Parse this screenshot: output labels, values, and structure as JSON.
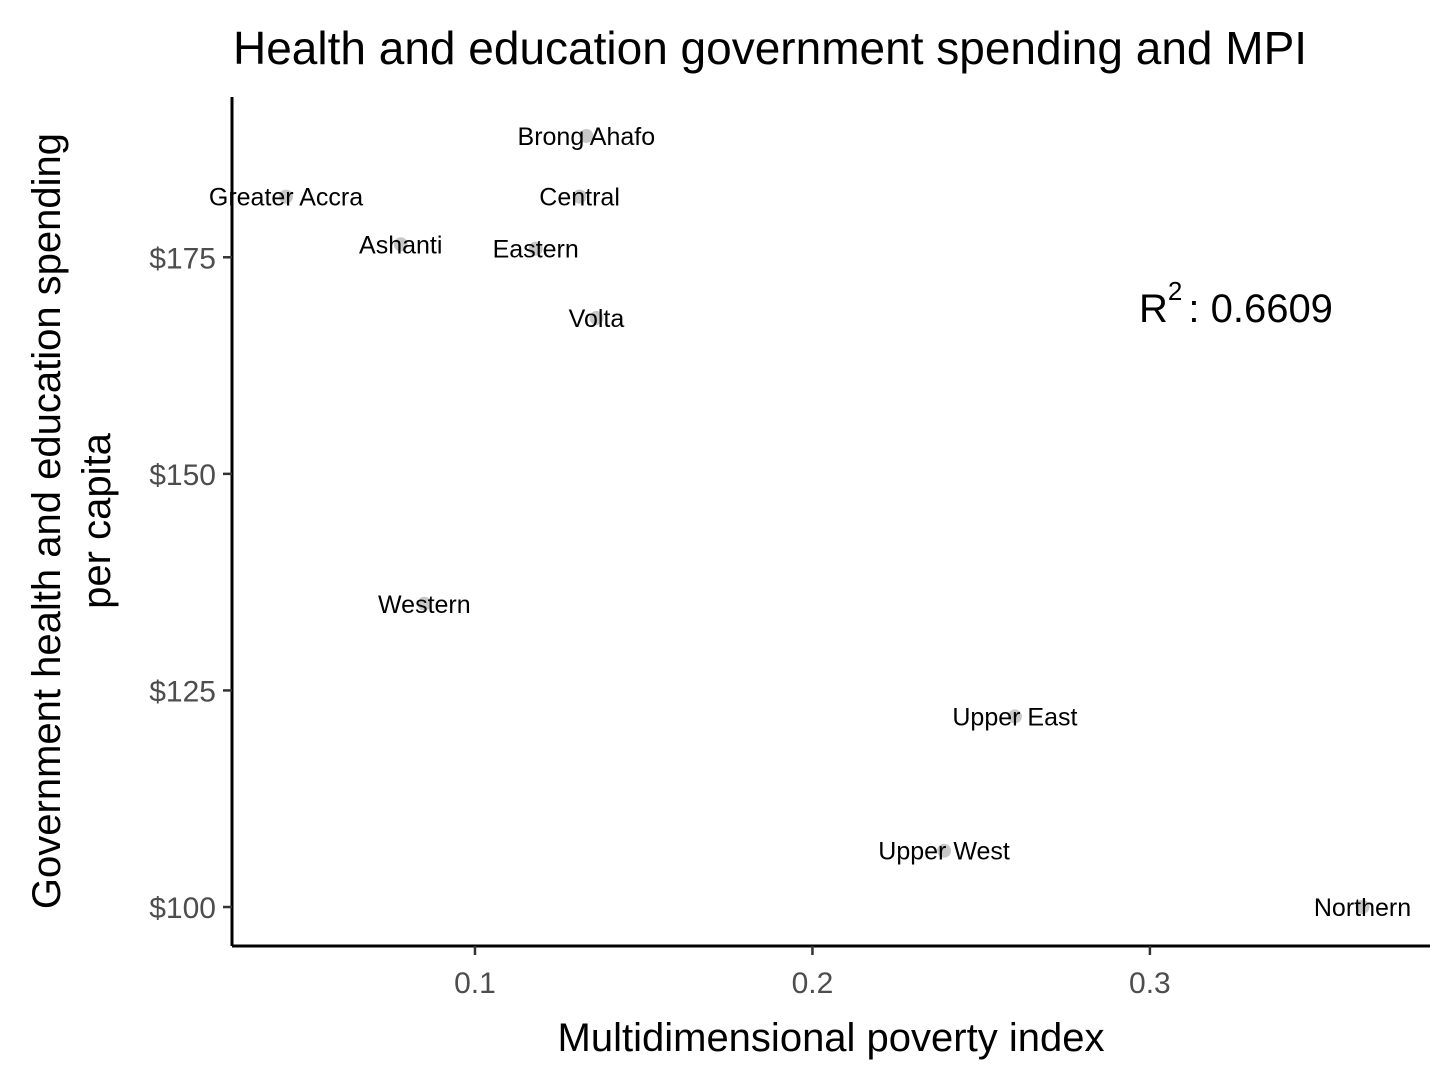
{
  "chart_data": {
    "type": "scatter",
    "title": "Health and education government spending and MPI",
    "xlabel": "Multidimensional poverty index",
    "ylabel_lines": [
      "Government health and education spending",
      "per capita"
    ],
    "xlim": [
      0.028,
      0.383
    ],
    "ylim": [
      95.5,
      193.5
    ],
    "x_ticks": [
      {
        "value": 0.1,
        "label": "0.1"
      },
      {
        "value": 0.2,
        "label": "0.2"
      },
      {
        "value": 0.3,
        "label": "0.3"
      }
    ],
    "y_ticks": [
      {
        "value": 100,
        "label": "$100"
      },
      {
        "value": 125,
        "label": "$125"
      },
      {
        "value": 150,
        "label": "$150"
      },
      {
        "value": 175,
        "label": "$175"
      }
    ],
    "point_color": "#c8c8c8",
    "points": [
      {
        "label": "Greater Accra",
        "x": 0.044,
        "y": 182
      },
      {
        "label": "Ashanti",
        "x": 0.078,
        "y": 176.5
      },
      {
        "label": "Brong Ahafo",
        "x": 0.133,
        "y": 189
      },
      {
        "label": "Central",
        "x": 0.131,
        "y": 182
      },
      {
        "label": "Eastern",
        "x": 0.118,
        "y": 176
      },
      {
        "label": "Volta",
        "x": 0.136,
        "y": 168
      },
      {
        "label": "Western",
        "x": 0.085,
        "y": 135
      },
      {
        "label": "Upper East",
        "x": 0.26,
        "y": 122
      },
      {
        "label": "Upper West",
        "x": 0.239,
        "y": 106.5
      },
      {
        "label": "Northern",
        "x": 0.363,
        "y": 100
      }
    ],
    "annotation": {
      "base": "R",
      "sup": "2",
      "text": ": 0.6609"
    },
    "grid": false,
    "legend": "none"
  }
}
